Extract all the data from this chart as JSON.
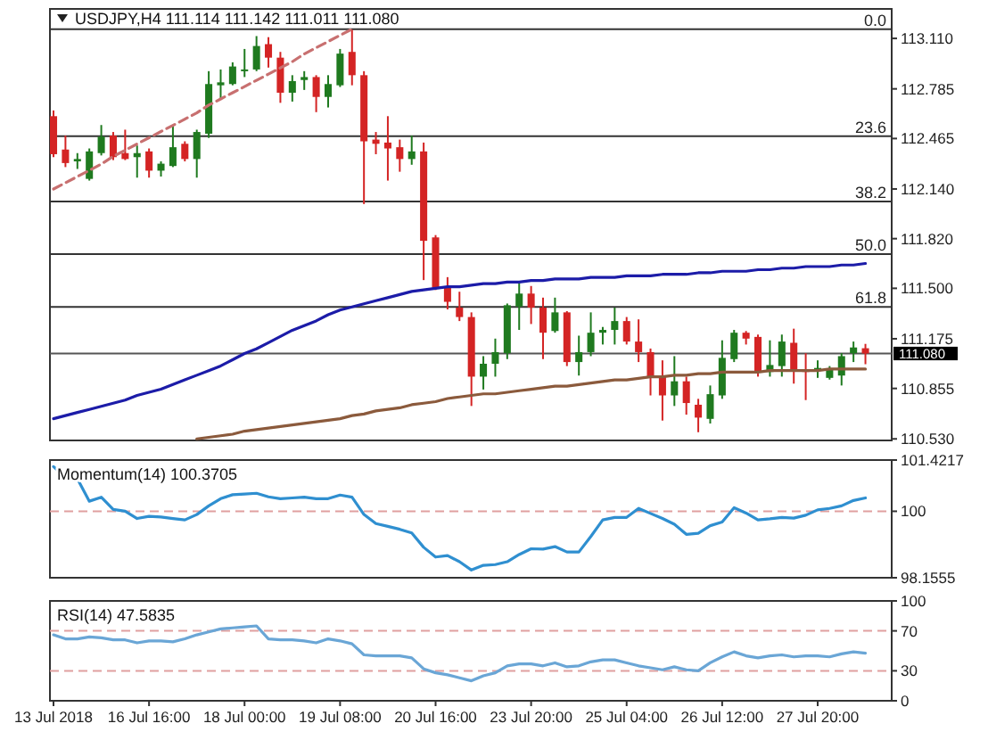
{
  "chart_data": [
    {
      "type": "candlestick",
      "title": "USDJPY,H4 111.114 111.142 111.011 111.080",
      "tick_labels": "y",
      "categories": [
        null,
        null,
        null,
        null,
        null,
        null,
        null,
        null,
        null,
        null,
        null,
        null,
        null,
        null,
        null,
        null,
        null,
        null,
        null,
        null,
        null,
        null,
        null,
        null,
        null,
        null,
        null,
        null,
        null,
        null,
        null,
        null,
        null,
        null,
        null,
        null,
        null,
        null,
        null,
        null,
        null,
        null,
        null,
        null,
        null,
        null,
        null,
        null,
        null,
        null,
        null,
        null,
        null,
        null,
        null,
        null,
        null,
        null,
        null,
        null,
        null,
        null,
        null,
        null,
        null,
        null,
        null,
        null,
        null
      ],
      "ohlc": [
        [
          112.609,
          112.646,
          112.345,
          112.364
        ],
        [
          112.394,
          112.484,
          112.281,
          112.307
        ],
        [
          112.318,
          112.371,
          112.269,
          112.333
        ],
        [
          112.205,
          112.401,
          112.194,
          112.382
        ],
        [
          112.371,
          112.552,
          112.356,
          112.477
        ],
        [
          112.484,
          112.507,
          112.326,
          112.345
        ],
        [
          112.371,
          112.522,
          112.326,
          112.333
        ],
        [
          112.345,
          112.42,
          112.213,
          112.371
        ],
        [
          112.382,
          112.401,
          112.213,
          112.258
        ],
        [
          112.258,
          112.318,
          112.22,
          112.303
        ],
        [
          112.288,
          112.552,
          112.281,
          112.409
        ],
        [
          112.431,
          112.447,
          112.318,
          112.333
        ],
        [
          112.333,
          112.522,
          112.213,
          112.507
        ],
        [
          112.496,
          112.899,
          112.469,
          112.816
        ],
        [
          112.808,
          112.91,
          112.722,
          112.827
        ],
        [
          112.816,
          112.956,
          112.808,
          112.929
        ],
        [
          112.899,
          113.042,
          112.861,
          112.91
        ],
        [
          112.91,
          113.125,
          112.899,
          113.061
        ],
        [
          113.073,
          113.118,
          112.922,
          112.986
        ],
        [
          112.986,
          113.023,
          112.695,
          112.76
        ],
        [
          112.76,
          112.873,
          112.703,
          112.835
        ],
        [
          112.842,
          112.899,
          112.778,
          112.861
        ],
        [
          112.861,
          112.873,
          112.635,
          112.733
        ],
        [
          112.733,
          112.873,
          112.665,
          112.816
        ],
        [
          112.808,
          113.042,
          112.797,
          113.012
        ],
        [
          113.023,
          113.167,
          112.808,
          112.873
        ],
        [
          112.873,
          112.899,
          112.043,
          112.447
        ],
        [
          112.458,
          112.507,
          112.364,
          112.431
        ],
        [
          112.439,
          112.609,
          112.194,
          112.401
        ],
        [
          112.409,
          112.458,
          112.251,
          112.333
        ],
        [
          112.333,
          112.484,
          112.296,
          112.382
        ],
        [
          112.382,
          112.439,
          111.553,
          111.806
        ],
        [
          111.828,
          111.843,
          111.489,
          111.504
        ],
        [
          111.504,
          111.572,
          111.364,
          111.413
        ],
        [
          111.376,
          111.478,
          111.289,
          111.315
        ],
        [
          111.315,
          111.345,
          110.742,
          110.931
        ],
        [
          110.931,
          111.063,
          110.848,
          111.014
        ],
        [
          111.014,
          111.176,
          110.931,
          111.089
        ],
        [
          111.082,
          111.402,
          111.044,
          111.391
        ],
        [
          111.383,
          111.534,
          111.232,
          111.466
        ],
        [
          111.466,
          111.515,
          111.27,
          111.376
        ],
        [
          111.376,
          111.44,
          111.044,
          111.214
        ],
        [
          111.225,
          111.44,
          111.214,
          111.345
        ],
        [
          111.345,
          111.353,
          110.999,
          111.025
        ],
        [
          111.025,
          111.195,
          110.938,
          111.089
        ],
        [
          111.089,
          111.345,
          111.063,
          111.214
        ],
        [
          111.214,
          111.251,
          111.138,
          111.232
        ],
        [
          111.232,
          111.376,
          111.138,
          111.289
        ],
        [
          111.289,
          111.315,
          111.138,
          111.157
        ],
        [
          111.157,
          111.3,
          111.025,
          111.089
        ],
        [
          111.089,
          111.112,
          110.81,
          110.931
        ],
        [
          110.931,
          111.036,
          110.648,
          110.81
        ],
        [
          110.81,
          111.063,
          110.742,
          110.901
        ],
        [
          110.901,
          110.931,
          110.686,
          110.761
        ],
        [
          110.75,
          110.788,
          110.573,
          110.667
        ],
        [
          110.659,
          110.874,
          110.629,
          110.818
        ],
        [
          110.81,
          111.165,
          110.788,
          111.052
        ],
        [
          111.044,
          111.232,
          111.025,
          111.214
        ],
        [
          111.214,
          111.225,
          111.138,
          111.176
        ],
        [
          111.187,
          111.202,
          110.931,
          110.961
        ],
        [
          110.961,
          111.165,
          110.931,
          111.006
        ],
        [
          110.999,
          111.202,
          110.931,
          111.157
        ],
        [
          111.149,
          111.24,
          110.886,
          110.976
        ],
        [
          110.976,
          111.082,
          110.78,
          110.961
        ],
        [
          110.976,
          111.036,
          110.923,
          110.987
        ],
        [
          110.923,
          110.999,
          110.912,
          110.976
        ],
        [
          110.938,
          111.082,
          110.874,
          111.063
        ],
        [
          111.082,
          111.157,
          111.025,
          111.119
        ],
        [
          111.114,
          111.142,
          111.011,
          111.08
        ]
      ],
      "series": [
        {
          "type": "line",
          "color": "#1c1ca8",
          "values": [
            110.66,
            110.68,
            110.7,
            110.72,
            110.74,
            110.76,
            110.78,
            110.81,
            110.83,
            110.85,
            110.88,
            110.91,
            110.94,
            110.97,
            111.0,
            111.04,
            111.08,
            111.11,
            111.15,
            111.19,
            111.23,
            111.26,
            111.29,
            111.33,
            111.36,
            111.38,
            111.4,
            111.42,
            111.44,
            111.46,
            111.48,
            111.49,
            111.5,
            111.51,
            111.51,
            111.52,
            111.53,
            111.53,
            111.54,
            111.54,
            111.55,
            111.55,
            111.56,
            111.56,
            111.56,
            111.57,
            111.57,
            111.57,
            111.58,
            111.58,
            111.58,
            111.59,
            111.59,
            111.59,
            111.6,
            111.6,
            111.61,
            111.61,
            111.61,
            111.62,
            111.62,
            111.63,
            111.63,
            111.64,
            111.64,
            111.64,
            111.65,
            111.65,
            111.66
          ]
        },
        {
          "type": "line",
          "color": "#8b5a3c",
          "values": [
            null,
            null,
            null,
            null,
            null,
            null,
            null,
            null,
            null,
            null,
            null,
            null,
            110.53,
            110.54,
            110.55,
            110.56,
            110.58,
            110.59,
            110.6,
            110.61,
            110.62,
            110.63,
            110.64,
            110.65,
            110.66,
            110.68,
            110.69,
            110.71,
            110.72,
            110.73,
            110.75,
            110.76,
            110.77,
            110.79,
            110.8,
            110.81,
            110.82,
            110.82,
            110.83,
            110.84,
            110.85,
            110.86,
            110.87,
            110.87,
            110.88,
            110.89,
            110.9,
            110.91,
            110.91,
            110.92,
            110.93,
            110.93,
            110.94,
            110.94,
            110.95,
            110.95,
            110.96,
            110.96,
            110.96,
            110.96,
            110.97,
            110.97,
            110.97,
            110.97,
            110.97,
            110.98,
            110.98,
            110.98,
            110.98
          ]
        },
        {
          "type": "line",
          "color": "#c87070",
          "line_style": "dashed",
          "values": [
            112.14,
            112.18,
            112.22,
            112.26,
            112.3,
            112.35,
            112.39,
            112.43,
            112.47,
            112.51,
            112.55,
            112.59,
            112.63,
            112.68,
            112.72,
            112.76,
            112.8,
            112.84,
            112.88,
            112.92,
            112.96,
            113.01,
            113.05,
            113.09,
            113.13,
            113.17,
            null,
            null,
            null,
            null,
            null,
            null,
            null,
            null,
            null,
            null,
            null,
            null,
            null,
            null,
            null,
            null,
            null,
            null,
            null,
            null,
            null,
            null,
            null,
            null,
            null,
            null,
            null,
            null,
            null,
            null,
            null,
            null,
            null,
            null,
            null,
            null,
            null,
            null,
            null,
            null,
            null,
            null,
            null
          ]
        }
      ],
      "ref_lines": [
        {
          "axis": "y",
          "value": 113.17,
          "color": "#333333"
        },
        {
          "axis": "y",
          "value": 112.48,
          "color": "#333333"
        },
        {
          "axis": "y",
          "value": 112.06,
          "color": "#333333"
        },
        {
          "axis": "y",
          "value": 111.72,
          "color": "#333333"
        },
        {
          "axis": "y",
          "value": 111.38,
          "color": "#333333"
        },
        {
          "axis": "y",
          "value": 111.08,
          "label": "111.080",
          "color": "#555555"
        }
      ],
      "annotations": [
        {
          "text": "0.0",
          "y": 113.17
        },
        {
          "text": "23.6",
          "y": 112.48
        },
        {
          "text": "38.2",
          "y": 112.06
        },
        {
          "text": "50.0",
          "y": 111.72
        },
        {
          "text": "61.8",
          "y": 111.38
        }
      ],
      "ylim": [
        110.52,
        113.3
      ],
      "yticks": [
        {
          "value": 113.11,
          "label": "113.110"
        },
        {
          "value": 112.785,
          "label": "112.785"
        },
        {
          "value": 112.465,
          "label": "112.465"
        },
        {
          "value": 112.14,
          "label": "112.140"
        },
        {
          "value": 111.82,
          "label": "111.820"
        },
        {
          "value": 111.5,
          "label": "111.500"
        },
        {
          "value": 111.175,
          "label": "111.175"
        },
        {
          "value": 110.855,
          "label": "110.855"
        },
        {
          "value": 110.53,
          "label": "110.530"
        }
      ]
    },
    {
      "type": "line",
      "title": "Momentum(14) 100.3705",
      "tick_labels": "y",
      "categories": [
        null,
        null,
        null,
        null,
        null,
        null,
        null,
        null,
        null,
        null,
        null,
        null,
        null,
        null,
        null,
        null,
        null,
        null,
        null,
        null,
        null,
        null,
        null,
        null,
        null,
        null,
        null,
        null,
        null,
        null,
        null,
        null,
        null,
        null,
        null,
        null,
        null,
        null,
        null,
        null,
        null,
        null,
        null,
        null,
        null,
        null,
        null,
        null,
        null,
        null,
        null,
        null,
        null,
        null,
        null,
        null,
        null,
        null,
        null,
        null,
        null,
        null,
        null,
        null,
        null,
        null,
        null,
        null,
        null
      ],
      "series": [
        {
          "color": "#2f8fd0",
          "values": [
            101.24,
            100.94,
            100.9,
            100.28,
            100.39,
            100.05,
            100.0,
            99.8,
            99.86,
            99.84,
            99.8,
            99.76,
            99.91,
            100.15,
            100.35,
            100.46,
            100.48,
            100.5,
            100.4,
            100.35,
            100.37,
            100.39,
            100.35,
            100.35,
            100.45,
            100.39,
            99.91,
            99.66,
            99.58,
            99.5,
            99.4,
            99.0,
            98.73,
            98.77,
            98.6,
            98.37,
            98.5,
            98.52,
            98.6,
            98.8,
            98.96,
            98.95,
            99.02,
            98.87,
            98.87,
            99.3,
            99.76,
            99.83,
            99.83,
            100.08,
            99.94,
            99.8,
            99.64,
            99.36,
            99.39,
            99.6,
            99.7,
            100.1,
            99.95,
            99.76,
            99.79,
            99.83,
            99.81,
            99.89,
            100.04,
            100.08,
            100.15,
            100.3,
            100.3705
          ]
        }
      ],
      "ref_lines": [
        {
          "axis": "y",
          "value": 100,
          "color": "#e0a0a0",
          "line_style": "dashed"
        }
      ],
      "ylim": [
        98.1555,
        101.4217
      ],
      "yticks": [
        101.4217,
        100,
        98.1555
      ]
    },
    {
      "type": "line",
      "title": "RSI(14) 47.5835",
      "categories": [
        "13 Jul 2018",
        null,
        null,
        null,
        null,
        null,
        null,
        null,
        "16 Jul 16:00",
        null,
        null,
        null,
        null,
        null,
        null,
        null,
        "18 Jul 00:00",
        null,
        null,
        null,
        null,
        null,
        null,
        null,
        "19 Jul 08:00",
        null,
        null,
        null,
        null,
        null,
        null,
        null,
        "20 Jul 16:00",
        null,
        null,
        null,
        null,
        null,
        null,
        null,
        "23 Jul 20:00",
        null,
        null,
        null,
        null,
        null,
        null,
        null,
        "25 Jul 04:00",
        null,
        null,
        null,
        null,
        null,
        null,
        null,
        "26 Jul 12:00",
        null,
        null,
        null,
        null,
        null,
        null,
        null,
        "27 Jul 20:00",
        null,
        null,
        null,
        null
      ],
      "series": [
        {
          "color": "#6aa6d6",
          "values": [
            66,
            62,
            62,
            64,
            63,
            61,
            61,
            58,
            60,
            60,
            59,
            62,
            66,
            69,
            72,
            73,
            74,
            75,
            62,
            61,
            61,
            60,
            58,
            62,
            60,
            57,
            46,
            45,
            45,
            45,
            43,
            32,
            28,
            26,
            23,
            20,
            25,
            28,
            35,
            37,
            37,
            35,
            38,
            34,
            35,
            39,
            41,
            41,
            38,
            35,
            33,
            31,
            34,
            31,
            30,
            38,
            44,
            49,
            45,
            43,
            45,
            46,
            44,
            45,
            45,
            44,
            47,
            49,
            47.6
          ]
        }
      ],
      "ref_lines": [
        {
          "axis": "y",
          "value": 70,
          "color": "#e0a0a0",
          "line_style": "dashed"
        },
        {
          "axis": "y",
          "value": 30,
          "color": "#e0a0a0",
          "line_style": "dashed"
        }
      ],
      "ylim": [
        0,
        100
      ],
      "yticks": [
        100,
        70,
        30,
        0
      ]
    }
  ]
}
